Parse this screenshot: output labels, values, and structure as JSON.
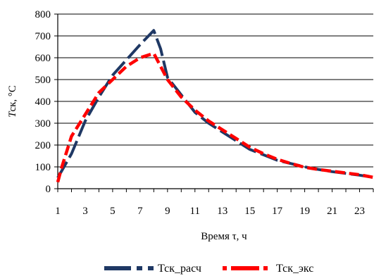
{
  "chart_data": {
    "type": "line",
    "xlabel": "Время τ, ч",
    "ylabel_italic": "T",
    "ylabel_rest": "ск, °C",
    "ylim": [
      0,
      800
    ],
    "yticks": [
      "0",
      "100",
      "200",
      "300",
      "400",
      "500",
      "600",
      "700",
      "800"
    ],
    "xticks": [
      "1",
      "3",
      "5",
      "7",
      "9",
      "11",
      "13",
      "15",
      "17",
      "19",
      "21",
      "23"
    ],
    "xlim": [
      1,
      24
    ],
    "grid": true,
    "legend_position": "bottom",
    "series": [
      {
        "name": "Тск_расч",
        "color": "#1f3864",
        "style": "long-dash",
        "x": [
          1,
          2,
          3,
          4,
          5,
          6,
          7,
          8,
          8.5,
          9,
          10,
          11,
          12,
          13,
          14,
          15,
          16,
          17,
          18,
          19,
          20,
          21,
          22,
          23,
          24
        ],
        "values": [
          50,
          160,
          310,
          420,
          520,
          590,
          660,
          725,
          640,
          510,
          430,
          350,
          300,
          260,
          220,
          180,
          155,
          130,
          115,
          100,
          88,
          78,
          70,
          62,
          52
        ]
      },
      {
        "name": "Тск_экс",
        "color": "#ff0000",
        "style": "dash",
        "x": [
          1,
          1.3,
          2,
          3,
          4,
          5,
          6,
          7,
          8,
          8.5,
          9,
          10,
          11,
          12,
          13,
          14,
          15,
          16,
          17,
          18,
          19,
          20,
          21,
          22,
          23,
          24
        ],
        "values": [
          30,
          100,
          240,
          340,
          440,
          500,
          560,
          600,
          620,
          560,
          500,
          420,
          360,
          310,
          270,
          230,
          190,
          160,
          135,
          115,
          98,
          88,
          80,
          72,
          64,
          52
        ]
      }
    ]
  }
}
